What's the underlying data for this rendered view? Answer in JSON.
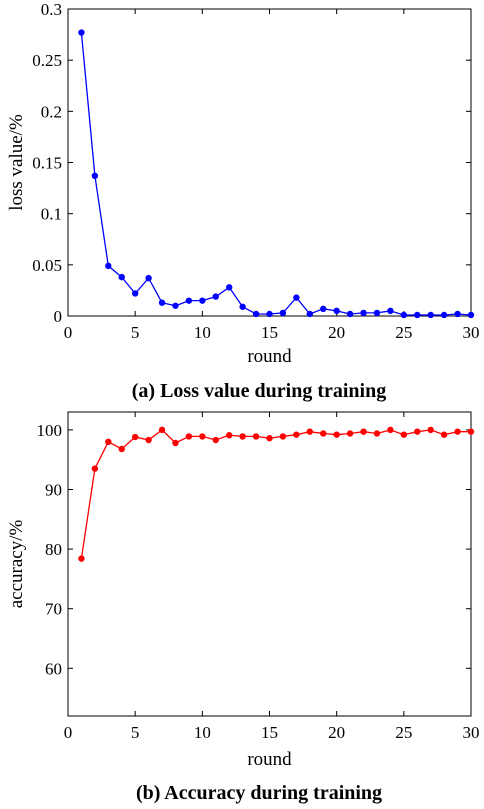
{
  "chart_data": [
    {
      "type": "line",
      "caption": "(a) Loss value during training",
      "xlabel": "round",
      "ylabel": "loss value/%",
      "xlim": [
        0,
        30
      ],
      "ylim": [
        0,
        0.3
      ],
      "xticks": [
        0,
        5,
        10,
        15,
        20,
        25,
        30
      ],
      "yticks": [
        0,
        0.05,
        0.1,
        0.15,
        0.2,
        0.25,
        0.3
      ],
      "xtick_labels": [
        "0",
        "5",
        "10",
        "15",
        "20",
        "25",
        "30"
      ],
      "ytick_labels": [
        "0",
        "0.05",
        "0.1",
        "0.15",
        "0.2",
        "0.25",
        "0.3"
      ],
      "color": "#0000ff",
      "grid": false,
      "series": [
        {
          "x": [
            1,
            2,
            3,
            4,
            5,
            6,
            7,
            8,
            9,
            10,
            11,
            12,
            13,
            14,
            15,
            16,
            17,
            18,
            19,
            20,
            21,
            22,
            23,
            24,
            25,
            26,
            27,
            28,
            29,
            30
          ],
          "values": [
            0.277,
            0.137,
            0.049,
            0.038,
            0.022,
            0.037,
            0.013,
            0.01,
            0.015,
            0.015,
            0.019,
            0.028,
            0.009,
            0.002,
            0.002,
            0.003,
            0.018,
            0.002,
            0.007,
            0.005,
            0.002,
            0.003,
            0.003,
            0.005,
            0.001,
            0.001,
            0.001,
            0.001,
            0.002,
            0.001
          ]
        }
      ]
    },
    {
      "type": "line",
      "caption": "(b) Accuracy during training",
      "xlabel": "round",
      "ylabel": "accuracy/%",
      "xlim": [
        0,
        30
      ],
      "ylim": [
        52,
        103
      ],
      "xticks": [
        0,
        5,
        10,
        15,
        20,
        25,
        30
      ],
      "yticks": [
        60,
        70,
        80,
        90,
        100
      ],
      "xtick_labels": [
        "0",
        "5",
        "10",
        "15",
        "20",
        "25",
        "30"
      ],
      "ytick_labels": [
        "60",
        "70",
        "80",
        "90",
        "100"
      ],
      "color": "#ff0000",
      "grid": false,
      "series": [
        {
          "x": [
            1,
            2,
            3,
            4,
            5,
            6,
            7,
            8,
            9,
            10,
            11,
            12,
            13,
            14,
            15,
            16,
            17,
            18,
            19,
            20,
            21,
            22,
            23,
            24,
            25,
            26,
            27,
            28,
            29,
            30
          ],
          "values": [
            78.4,
            93.5,
            98.0,
            96.8,
            98.8,
            98.3,
            100.0,
            97.8,
            98.9,
            98.9,
            98.3,
            99.1,
            98.9,
            98.9,
            98.6,
            98.9,
            99.2,
            99.7,
            99.4,
            99.2,
            99.4,
            99.7,
            99.4,
            100.0,
            99.2,
            99.7,
            100.0,
            99.2,
            99.7,
            99.7
          ]
        }
      ]
    }
  ]
}
